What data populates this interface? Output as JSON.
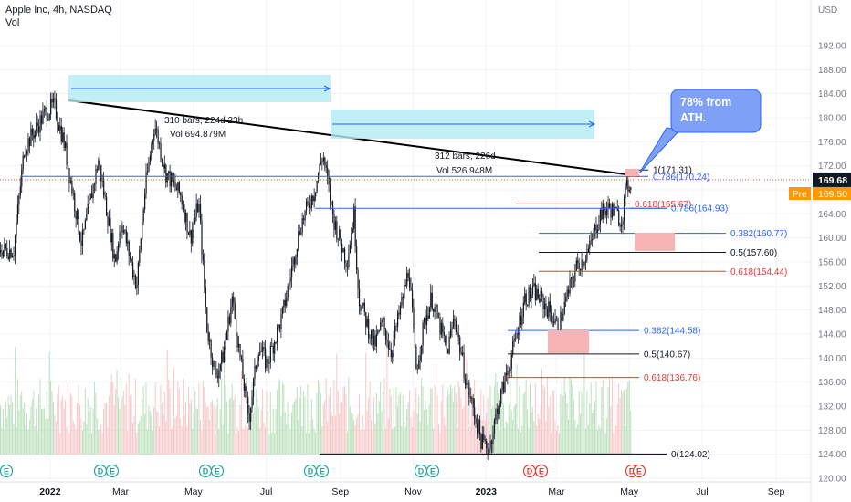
{
  "header": {
    "symbol_line": "Apple Inc, 4h, NASDAQ",
    "vol_label": "Vol"
  },
  "price_axis": {
    "currency": "USD",
    "last_price_label": "169.68",
    "pre_tag": "Pre",
    "pre_price_label": "169.50",
    "colors": {
      "last_price": "#131722",
      "pre": "#ff9800"
    }
  },
  "annotations": {
    "callout_text_line1": "78% from",
    "callout_text_line2": "ATH.",
    "range1_bars": "310 bars, 224d 23h",
    "range1_vol": "Vol 694.879M",
    "range2_bars": "312 bars, 226d",
    "range2_vol": "Vol 526.948M"
  },
  "fib_labels": [
    {
      "text": "1(171.31)",
      "price": 171.31,
      "color": "#131722"
    },
    {
      "text": "0.786(170.24)",
      "price": 170.24,
      "color": "#2962ff"
    },
    {
      "text": "0.618(165.67)",
      "price": 165.67,
      "color": "#e53935"
    },
    {
      "text": "0.786(164.93)",
      "price": 164.93,
      "color": "#2962ff"
    },
    {
      "text": "0.382(160.77)",
      "price": 160.77,
      "color": "#2962ff"
    },
    {
      "text": "0.5(157.60)",
      "price": 157.6,
      "color": "#131722"
    },
    {
      "text": "0.618(154.44)",
      "price": 154.44,
      "color": "#e53935"
    },
    {
      "text": "0.382(144.58)",
      "price": 144.58,
      "color": "#2962ff"
    },
    {
      "text": "0.5(140.67)",
      "price": 140.67,
      "color": "#131722"
    },
    {
      "text": "0.618(136.76)",
      "price": 136.76,
      "color": "#e53935"
    },
    {
      "text": "0(124.02)",
      "price": 124.02,
      "color": "#131722"
    }
  ],
  "event_badges": [
    "E",
    "D",
    "E",
    "D",
    "E",
    "D",
    "E",
    "D",
    "E",
    "D",
    "E",
    "D",
    "E"
  ],
  "chart_data": {
    "type": "candlestick",
    "title": "Apple Inc, 4h, NASDAQ",
    "x_tick_labels": [
      "2022",
      "Mar",
      "May",
      "Jul",
      "Sep",
      "Nov",
      "2023",
      "Mar",
      "May",
      "Jul",
      "Sep"
    ],
    "y_tick_labels": [
      "120.00",
      "124.00",
      "128.00",
      "132.00",
      "136.00",
      "140.00",
      "144.00",
      "148.00",
      "152.00",
      "156.00",
      "160.00",
      "164.00",
      "168.00",
      "172.00",
      "176.00",
      "180.00",
      "184.00",
      "188.00",
      "192.00"
    ],
    "ylim": [
      120,
      196
    ],
    "series": [
      {
        "name": "",
        "close_path": [
          [
            "2021-12-01",
            158
          ],
          [
            "2021-12-10",
            175
          ],
          [
            "2021-12-28",
            181
          ],
          [
            "2022-01-04",
            182
          ],
          [
            "2022-01-12",
            176
          ],
          [
            "2022-01-27",
            159
          ],
          [
            "2022-02-10",
            173
          ],
          [
            "2022-02-24",
            156
          ],
          [
            "2022-03-01",
            163
          ],
          [
            "2022-03-14",
            152
          ],
          [
            "2022-03-21",
            168
          ],
          [
            "2022-03-29",
            179
          ],
          [
            "2022-04-07",
            171
          ],
          [
            "2022-04-20",
            167
          ],
          [
            "2022-04-28",
            160
          ],
          [
            "2022-05-05",
            166
          ],
          [
            "2022-05-12",
            145
          ],
          [
            "2022-05-19",
            137
          ],
          [
            "2022-05-25",
            140
          ],
          [
            "2022-06-02",
            150
          ],
          [
            "2022-06-10",
            138
          ],
          [
            "2022-06-16",
            130
          ],
          [
            "2022-06-24",
            142
          ],
          [
            "2022-07-01",
            139
          ],
          [
            "2022-07-14",
            147
          ],
          [
            "2022-07-29",
            162
          ],
          [
            "2022-08-10",
            168
          ],
          [
            "2022-08-17",
            174
          ],
          [
            "2022-08-26",
            163
          ],
          [
            "2022-09-06",
            156
          ],
          [
            "2022-09-12",
            164
          ],
          [
            "2022-09-16",
            150
          ],
          [
            "2022-09-29",
            142
          ],
          [
            "2022-10-06",
            146
          ],
          [
            "2022-10-13",
            141
          ],
          [
            "2022-10-25",
            152
          ],
          [
            "2022-10-28",
            155
          ],
          [
            "2022-11-03",
            138
          ],
          [
            "2022-11-10",
            146
          ],
          [
            "2022-11-16",
            150
          ],
          [
            "2022-11-29",
            141
          ],
          [
            "2022-12-05",
            147
          ],
          [
            "2022-12-15",
            136
          ],
          [
            "2022-12-28",
            126
          ],
          [
            "2023-01-03",
            125
          ],
          [
            "2023-01-12",
            133
          ],
          [
            "2023-01-24",
            142
          ],
          [
            "2023-02-02",
            150
          ],
          [
            "2023-02-10",
            151
          ],
          [
            "2023-02-22",
            148
          ],
          [
            "2023-03-02",
            145
          ],
          [
            "2023-03-09",
            150
          ],
          [
            "2023-03-17",
            155
          ],
          [
            "2023-03-28",
            158
          ],
          [
            "2023-04-06",
            164
          ],
          [
            "2023-04-14",
            165
          ],
          [
            "2023-04-24",
            163
          ],
          [
            "2023-04-28",
            168
          ],
          [
            "2023-05-02",
            169.68
          ]
        ]
      }
    ],
    "volume": {
      "name": "Vol"
    },
    "grid": true
  }
}
